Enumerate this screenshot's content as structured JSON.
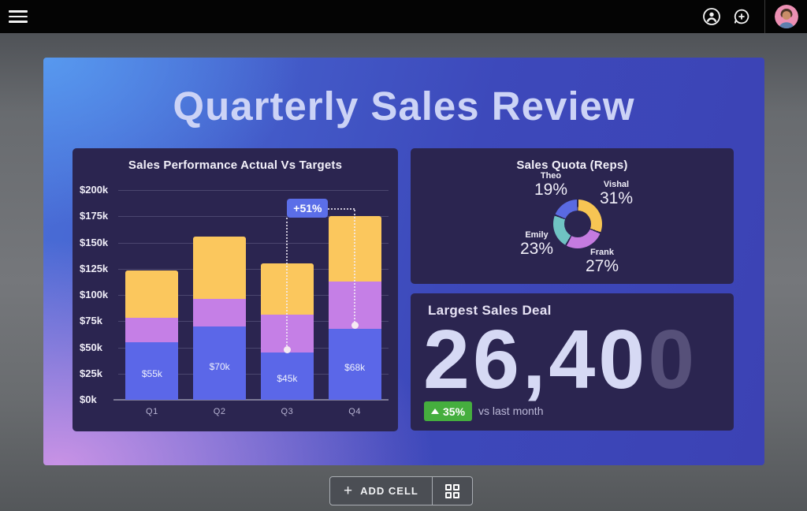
{
  "nav": {
    "menu_icon": "hamburger",
    "account_icon": "account-person",
    "add_comment_icon": "comment-plus",
    "avatar": "profile-photo"
  },
  "slide": {
    "title": "Quarterly Sales Review",
    "gradient_colors": [
      "#5a9bee",
      "#3d49bb",
      "#cd93e6"
    ]
  },
  "chart_data": [
    {
      "id": "sales-performance",
      "type": "bar",
      "stacked": true,
      "title": "Sales Performance Actual Vs Targets",
      "categories": [
        "Q1",
        "Q2",
        "Q3",
        "Q4"
      ],
      "series": [
        {
          "name": "actual-blue",
          "color": "#5b67e8",
          "values": [
            55,
            70,
            45,
            68
          ],
          "labels": [
            "$55k",
            "$70k",
            "$45k",
            "$68k"
          ]
        },
        {
          "name": "middle-purple",
          "color": "#c57fe6",
          "values": [
            23,
            26,
            36,
            45
          ]
        },
        {
          "name": "target-yellow",
          "color": "#fbc75d",
          "values": [
            45,
            60,
            49,
            62
          ]
        }
      ],
      "y_ticks": [
        "$200k",
        "$175k",
        "$150k",
        "$125k",
        "$100k",
        "$75k",
        "$50k",
        "$25k",
        "$0k"
      ],
      "ylim": [
        0,
        200
      ],
      "grid": true,
      "annotation": {
        "label": "+51%",
        "from_category": "Q3",
        "to_category": "Q4"
      }
    },
    {
      "id": "sales-quota",
      "type": "pie",
      "donut": true,
      "title": "Sales Quota (Reps)",
      "slices": [
        {
          "name": "Vishal",
          "pct": "31%",
          "value": 31,
          "color": "#f7c553"
        },
        {
          "name": "Frank",
          "pct": "27%",
          "value": 27,
          "color": "#c57be0"
        },
        {
          "name": "Emily",
          "pct": "23%",
          "value": 23,
          "color": "#6fc3c3"
        },
        {
          "name": "Theo",
          "pct": "19%",
          "value": 19,
          "color": "#5a6ae2"
        }
      ],
      "start_angle_deg": 0,
      "direction": "clockwise"
    },
    {
      "id": "largest-deal",
      "type": "kpi",
      "title": "Largest Sales Deal",
      "value_main": "26,40",
      "value_dim": "0",
      "delta": "35%",
      "delta_direction": "up",
      "delta_color": "#45ae3e",
      "caption": "vs last month"
    }
  ],
  "footer": {
    "plus": "+",
    "add_cell_label": "ADD CELL",
    "grid_icon": "grid-2x2"
  }
}
